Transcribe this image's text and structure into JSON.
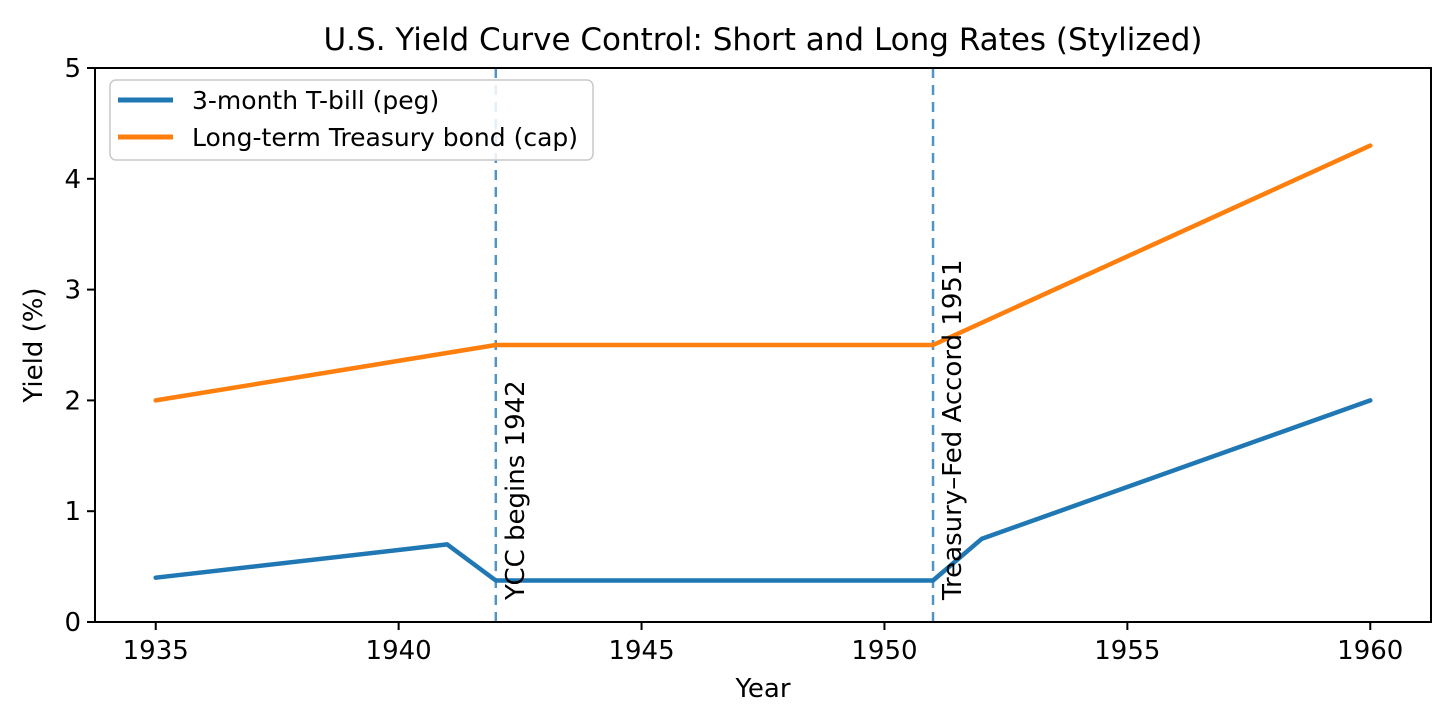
{
  "chart_data": {
    "type": "line",
    "title": "U.S. Yield Curve Control: Short and Long Rates (Stylized)",
    "xlabel": "Year",
    "ylabel": "Yield (%)",
    "xlim": [
      1933.75,
      1961.25
    ],
    "ylim": [
      0,
      5
    ],
    "xticks": [
      1935,
      1940,
      1945,
      1950,
      1955,
      1960
    ],
    "yticks": [
      0,
      1,
      2,
      3,
      4,
      5
    ],
    "grid": false,
    "legend_position": "upper-left",
    "series": [
      {
        "name": "3-month T-bill (peg)",
        "color": "#1f77b4",
        "points": [
          [
            1935,
            0.4
          ],
          [
            1941,
            0.7
          ],
          [
            1942,
            0.375
          ],
          [
            1951,
            0.375
          ],
          [
            1952,
            0.75
          ],
          [
            1960,
            2.0
          ]
        ]
      },
      {
        "name": "Long-term Treasury bond (cap)",
        "color": "#ff7f0e",
        "points": [
          [
            1935,
            2.0
          ],
          [
            1942,
            2.5
          ],
          [
            1951,
            2.5
          ],
          [
            1960,
            4.3
          ]
        ]
      }
    ],
    "vlines": [
      {
        "x": 1942,
        "label": "YCC begins 1942",
        "color": "#1f77b4",
        "style": "dashed"
      },
      {
        "x": 1951,
        "label": "Treasury–Fed Accord 1951",
        "color": "#1f77b4",
        "style": "dashed"
      }
    ]
  }
}
